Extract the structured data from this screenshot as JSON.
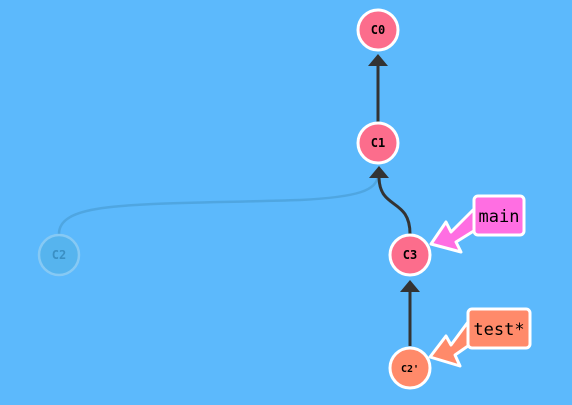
{
  "colors": {
    "background": "#5cb9fc",
    "commit_fill": "#fc6d8c",
    "commit_stroke": "#ffffff",
    "ghost_fill": "#56b4ee",
    "ghost_stroke": "#86c9f4",
    "ghost_text": "#3a8fc4",
    "edge": "#333333",
    "ghost_edge": "#4a9ed6",
    "main_branch": "#ff6ee2",
    "test_branch": "#ff8a6a",
    "test_commit_fill": "#ff8a6a"
  },
  "commits": {
    "c0": {
      "label": "C0"
    },
    "c1": {
      "label": "C1"
    },
    "c2": {
      "label": "C2"
    },
    "c3": {
      "label": "C3"
    },
    "c2p": {
      "label": "C2'"
    }
  },
  "branches": {
    "main": {
      "label": "main"
    },
    "test": {
      "label": "test*"
    }
  }
}
